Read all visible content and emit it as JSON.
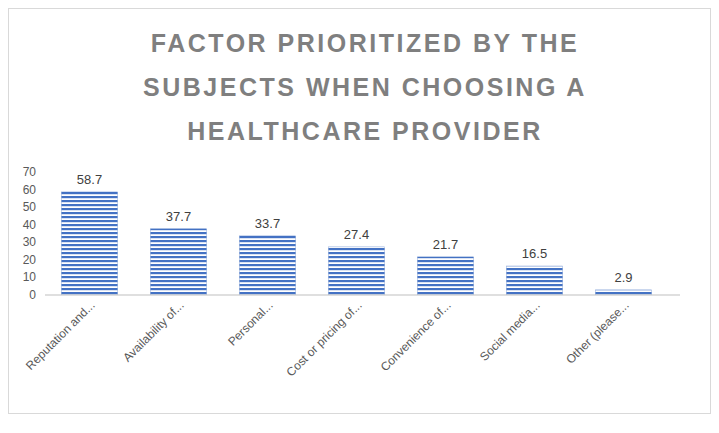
{
  "chart_data": {
    "type": "bar",
    "title": "FACTOR PRIORITIZED BY THE SUBJECTS WHEN CHOOSING A HEALTHCARE PROVIDER",
    "categories": [
      "Reputation and...",
      "Availability of...",
      "Personal...",
      "Cost or pricing of...",
      "Convenience of...",
      "Social media...",
      "Other (please..."
    ],
    "values": [
      58.7,
      37.7,
      33.7,
      27.4,
      21.7,
      16.5,
      2.9
    ],
    "color": "#4472c4",
    "ylim": [
      0,
      70
    ],
    "yticks": [
      0,
      10,
      20,
      30,
      40,
      50,
      60,
      70
    ],
    "grid": false,
    "data_labels": true
  }
}
